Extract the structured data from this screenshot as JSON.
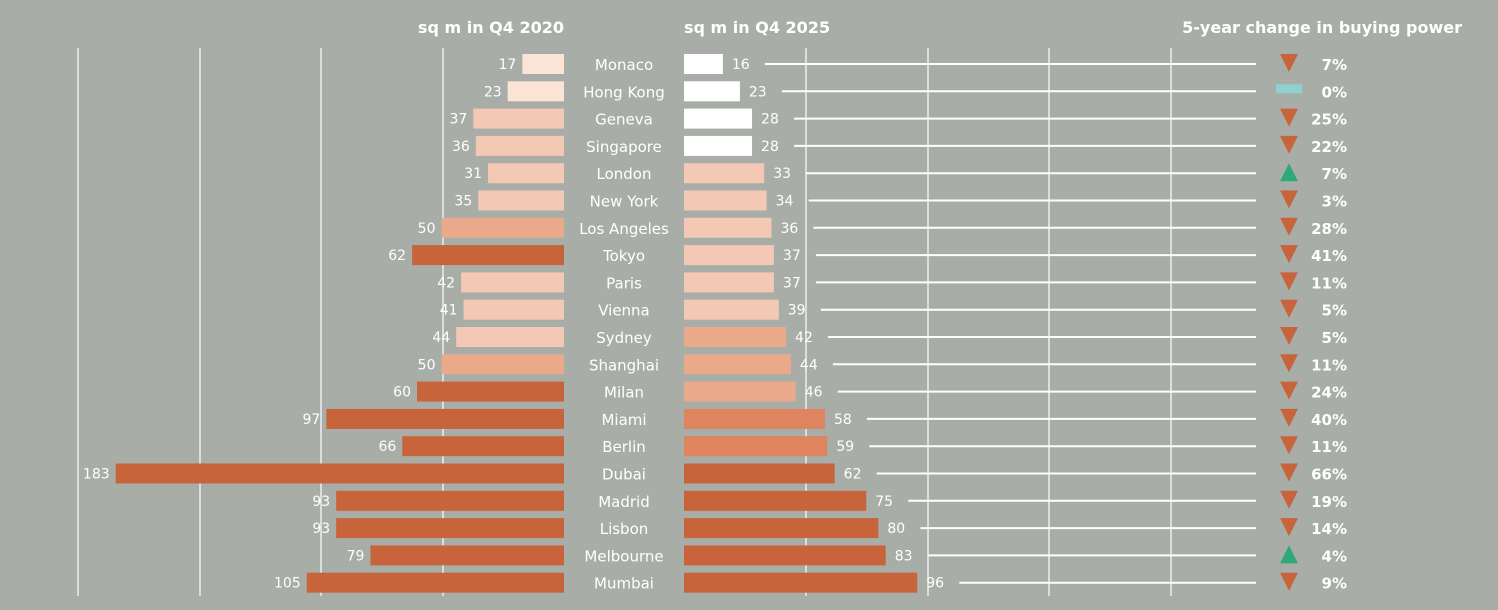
{
  "chart_data": {
    "type": "bar",
    "layout": "butterfly",
    "left_title": "sq m in Q4 2020",
    "right_title": "sq m in Q4 2025",
    "change_title": "5-year change in buying power",
    "categories": [
      "Monaco",
      "Hong Kong",
      "Geneva",
      "Singapore",
      "London",
      "New York",
      "Los Angeles",
      "Tokyo",
      "Paris",
      "Vienna",
      "Sydney",
      "Shanghai",
      "Milan",
      "Miami",
      "Berlin",
      "Dubai",
      "Madrid",
      "Lisbon",
      "Melbourne",
      "Mumbai"
    ],
    "series": [
      {
        "name": "sq m in Q4 2020",
        "values": [
          17,
          23,
          37,
          36,
          31,
          35,
          50,
          62,
          42,
          41,
          44,
          50,
          60,
          97,
          66,
          183,
          93,
          93,
          79,
          105
        ]
      },
      {
        "name": "sq m in Q4 2025",
        "values": [
          16,
          23,
          28,
          28,
          33,
          34,
          36,
          37,
          37,
          39,
          42,
          44,
          46,
          58,
          59,
          62,
          75,
          80,
          83,
          96
        ]
      }
    ],
    "change_labels": [
      "7%",
      "0%",
      "25%",
      "22%",
      "7%",
      "3%",
      "28%",
      "41%",
      "11%",
      "5%",
      "5%",
      "11%",
      "24%",
      "40%",
      "11%",
      "66%",
      "19%",
      "14%",
      "4%",
      "9%"
    ],
    "change_direction": [
      "down",
      "flat",
      "down",
      "down",
      "up",
      "down",
      "down",
      "down",
      "down",
      "down",
      "down",
      "down",
      "down",
      "down",
      "down",
      "down",
      "down",
      "down",
      "up",
      "down"
    ],
    "colors": {
      "background": "#a9ada8",
      "dark_bar": "#c8643c",
      "light_bar": "#f3c8b4",
      "lighter_bar": "#fbe3d6",
      "white_bar": "#ffffff",
      "medium_bar": "#eaa98b",
      "orange_bar": "#de845f",
      "down_marker": "#c8643c",
      "up_marker": "#2eaa7a",
      "flat_marker": "#8fd1d1",
      "text": "#ffffff"
    }
  }
}
